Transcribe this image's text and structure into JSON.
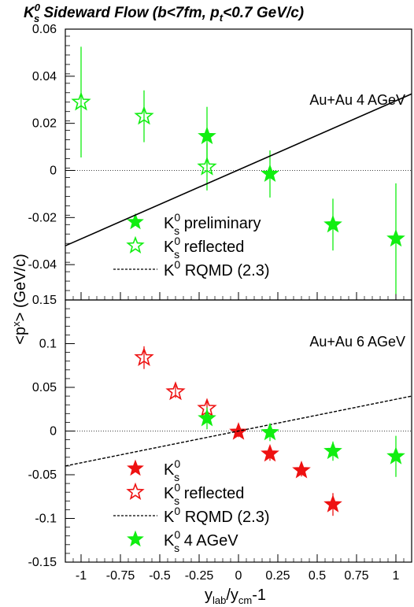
{
  "chart_data": [
    {
      "type": "scatter",
      "title": {
        "pre": "K",
        "sup": "0",
        "sub": "s",
        "post": " Sideward Flow (b<7fm, p",
        "sub2": "t",
        "post2": "<0.7 GeV/c)"
      },
      "annotation": "Au+Au 4 AGeV",
      "ylim": [
        -0.055,
        0.06
      ],
      "xlim": [
        -1.1,
        1.1
      ],
      "yticks": [
        "0.06",
        "0.04",
        "0.02",
        "0",
        "-0.02",
        "-0.04"
      ],
      "ytick_values": [
        0.06,
        0.04,
        0.02,
        0,
        -0.02,
        -0.04
      ],
      "series": [
        {
          "name": "preliminary",
          "symbol": "K",
          "sup": "0",
          "sub": "s",
          "legend_suffix": " preliminary",
          "marker": "filled-star",
          "color": "#11ee11",
          "points": [
            {
              "x": -0.2,
              "y": 0.0145,
              "err": 0.0125
            },
            {
              "x": 0.2,
              "y": -0.0015,
              "err": 0.01
            },
            {
              "x": 0.6,
              "y": -0.023,
              "err": 0.011
            },
            {
              "x": 1.0,
              "y": -0.029,
              "err": 0.0235
            }
          ]
        },
        {
          "name": "reflected",
          "symbol": "K",
          "sup": "0",
          "sub": "s",
          "legend_suffix": " reflected",
          "marker": "open-star",
          "color": "#11ee11",
          "points": [
            {
              "x": -1.0,
              "y": 0.029,
              "err": 0.0235
            },
            {
              "x": -0.6,
              "y": 0.023,
              "err": 0.011
            },
            {
              "x": -0.2,
              "y": 0.0015,
              "err": 0.01
            }
          ]
        },
        {
          "name": "RQMD (2.3)",
          "symbol": "K",
          "sup": "0",
          "sub": "",
          "legend_suffix": " RQMD (2.3)",
          "marker": "line",
          "color": "#000000",
          "points": [
            {
              "x": -1.1,
              "y": -0.032
            },
            {
              "x": 1.1,
              "y": 0.0325
            }
          ]
        }
      ]
    },
    {
      "type": "scatter",
      "annotation": "Au+Au 6 AGeV",
      "ylim": [
        -0.15,
        0.15
      ],
      "xlim": [
        -1.1,
        1.1
      ],
      "yticks": [
        "0.15",
        "0.1",
        "0.05",
        "0",
        "-0.05",
        "-0.1",
        "-0.15"
      ],
      "ytick_values": [
        0.15,
        0.1,
        0.05,
        0,
        -0.05,
        -0.1,
        -0.15
      ],
      "xticks": [
        "-1",
        "-0.75",
        "-0.5",
        "-0.25",
        "0",
        "0.25",
        "0.5",
        "0.75",
        "1"
      ],
      "xtick_values": [
        -1,
        -0.75,
        -0.5,
        -0.25,
        0,
        0.25,
        0.5,
        0.75,
        1
      ],
      "series": [
        {
          "name": "K0s",
          "symbol": "K",
          "sup": "0",
          "sub": "s",
          "legend_suffix": "",
          "marker": "filled-star",
          "color": "#ee1111",
          "points": [
            {
              "x": 0.0,
              "y": -0.001,
              "err": 0.006
            },
            {
              "x": 0.2,
              "y": -0.026,
              "err": 0.008
            },
            {
              "x": 0.4,
              "y": -0.045,
              "err": 0.007
            },
            {
              "x": 0.6,
              "y": -0.084,
              "err": 0.013
            }
          ]
        },
        {
          "name": "reflected",
          "symbol": "K",
          "sup": "0",
          "sub": "s",
          "legend_suffix": " reflected",
          "marker": "open-star",
          "color": "#ee1111",
          "points": [
            {
              "x": -0.6,
              "y": 0.084,
              "err": 0.013
            },
            {
              "x": -0.4,
              "y": 0.045,
              "err": 0.007
            },
            {
              "x": -0.2,
              "y": 0.026,
              "err": 0.008
            }
          ]
        },
        {
          "name": "RQMD (2.3)",
          "symbol": "K",
          "sup": "0",
          "sub": "",
          "legend_suffix": " RQMD (2.3)",
          "marker": "dashed-line",
          "color": "#000000",
          "points": [
            {
              "x": -1.1,
              "y": -0.04
            },
            {
              "x": 1.1,
              "y": 0.04
            }
          ]
        },
        {
          "name": "4 AGeV",
          "symbol": "K",
          "sup": "0",
          "sub": "s",
          "legend_suffix": " 4 AGeV",
          "marker": "filled-star",
          "color": "#11ee11",
          "points": [
            {
              "x": -0.2,
              "y": 0.0145,
              "err": 0.0125
            },
            {
              "x": 0.2,
              "y": -0.0015,
              "err": 0.01
            },
            {
              "x": 0.6,
              "y": -0.023,
              "err": 0.011
            },
            {
              "x": 1.0,
              "y": -0.029,
              "err": 0.0235
            }
          ]
        }
      ]
    }
  ],
  "ylabel": {
    "pre": "<p",
    "sup": "x",
    "post": "> (GeV/c)"
  },
  "xlabel": {
    "pre": "y",
    "sub1": "lab",
    "mid": "/y",
    "sub2": "cm",
    "post": "-1"
  }
}
